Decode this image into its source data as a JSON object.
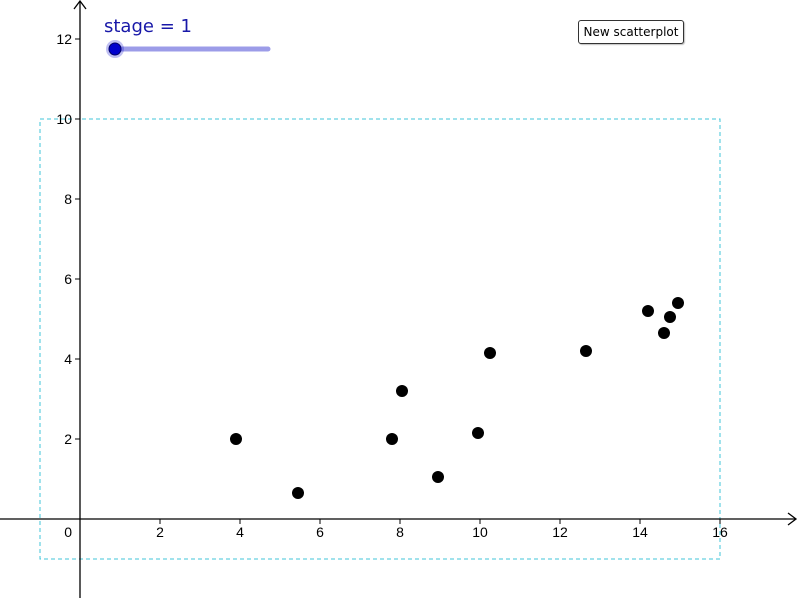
{
  "slider": {
    "label": "stage = 1",
    "value": 1,
    "min": 1,
    "max": 5,
    "label_color": "#1818a8",
    "track_color": "#9c9ce8",
    "knob_color": "#0000cc"
  },
  "buttons": {
    "new_scatterplot": "New scatterplot"
  },
  "colors": {
    "axis": "#000000",
    "points": "#000000",
    "frame": "#40c4d8"
  },
  "chart_data": {
    "type": "scatter",
    "title": "",
    "xlabel": "",
    "ylabel": "",
    "xlim": [
      -2,
      18
    ],
    "ylim": [
      -2,
      13
    ],
    "x_ticks": [
      2,
      4,
      6,
      8,
      10,
      12,
      14,
      16
    ],
    "y_ticks": [
      2,
      4,
      6,
      8,
      10,
      12
    ],
    "origin_label": "0",
    "grid": false,
    "frame_rect": {
      "x": [
        -1,
        16
      ],
      "y": [
        -1,
        10
      ]
    },
    "series": [
      {
        "points": [
          {
            "x": 3.9,
            "y": 2.0
          },
          {
            "x": 5.45,
            "y": 0.65
          },
          {
            "x": 7.8,
            "y": 2.0
          },
          {
            "x": 8.05,
            "y": 3.2
          },
          {
            "x": 8.95,
            "y": 1.05
          },
          {
            "x": 9.95,
            "y": 2.15
          },
          {
            "x": 10.25,
            "y": 4.15
          },
          {
            "x": 12.65,
            "y": 4.2
          },
          {
            "x": 14.2,
            "y": 5.2
          },
          {
            "x": 14.6,
            "y": 4.65
          },
          {
            "x": 14.75,
            "y": 5.05
          },
          {
            "x": 14.95,
            "y": 5.4
          }
        ]
      }
    ]
  }
}
